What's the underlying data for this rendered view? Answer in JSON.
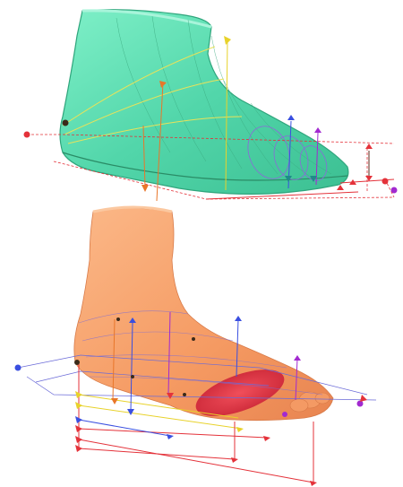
{
  "figure": {
    "upper_model": {
      "kind": "shoe-last-3d-model",
      "color": "#5fdcb4",
      "edge_color": "#2fa57c"
    },
    "lower_model": {
      "kind": "foot-3d-scan",
      "color": "#f7a06a",
      "highlight_color": "#e0303e"
    },
    "marker_colors": {
      "red": "#e4323a",
      "yellow": "#e8d22a",
      "blue": "#3a4fe0",
      "purple": "#a22ad0",
      "orange": "#e8762a",
      "dark": "#5a2a1a"
    }
  }
}
